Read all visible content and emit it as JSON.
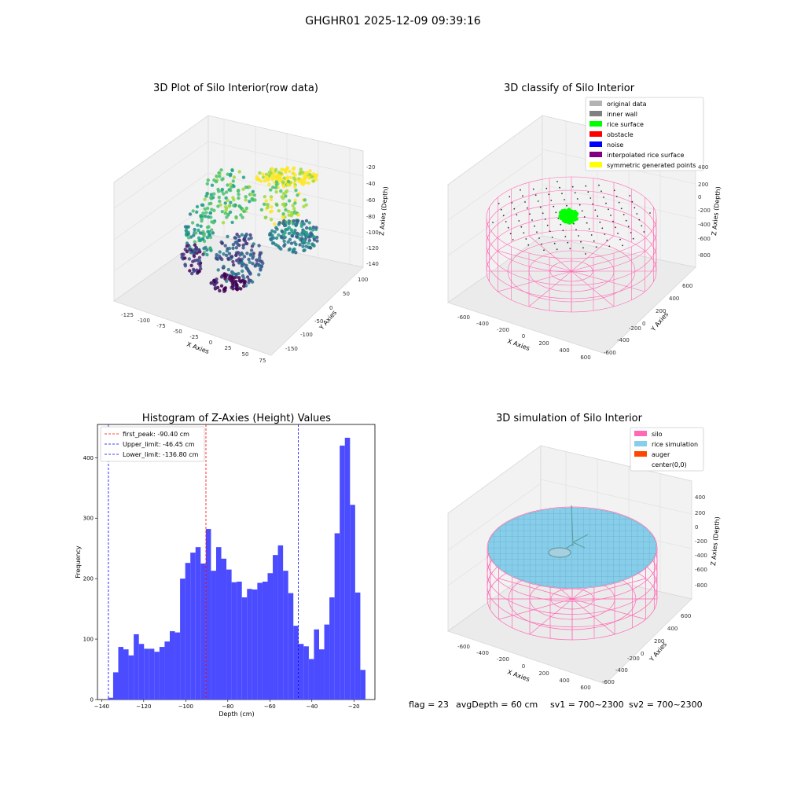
{
  "suptitle": "GHGHR01 2025-12-09 09:39:16",
  "panel1": {
    "title": "3D Plot of Silo Interior(row data)",
    "xlabel": "X Axies",
    "ylabel": "Y Axies",
    "zlabel": "Z Axies (Depth)",
    "xticks": [
      "-125",
      "-100",
      "-75",
      "-50",
      "-25",
      "0",
      "25",
      "50",
      "75"
    ],
    "yticks": [
      "100",
      "50",
      "0",
      "-50",
      "-100",
      "-150"
    ],
    "zticks": [
      "-20",
      "-40",
      "-60",
      "-80",
      "-100",
      "-120",
      "-140"
    ]
  },
  "panel2": {
    "title": "3D classify of Silo Interior",
    "legend": [
      {
        "label": "original data",
        "color": "#b3b3b3"
      },
      {
        "label": "inner wall",
        "color": "#808080"
      },
      {
        "label": "rice surface",
        "color": "#00ff00"
      },
      {
        "label": "obstacle",
        "color": "#ff0000"
      },
      {
        "label": "noise",
        "color": "#0000ff"
      },
      {
        "label": "interpolated rice surface",
        "color": "#800080"
      },
      {
        "label": "symmetric generated points",
        "color": "#ffff00"
      }
    ],
    "xlabel": "X Axies",
    "ylabel": "Y Axies",
    "zlabel": "Z Axies (Depth)",
    "xticks": [
      "-600",
      "-400",
      "-200",
      "0",
      "200",
      "400",
      "600"
    ],
    "yticks": [
      "600",
      "400",
      "200",
      "0",
      "-200",
      "-400",
      "-600"
    ],
    "zticks": [
      "400",
      "200",
      "0",
      "-200",
      "-400",
      "-600",
      "-800"
    ]
  },
  "panel3": {
    "title": "3D simulation of Silo Interior",
    "legend": [
      {
        "label": "silo",
        "color": "#ff69b4"
      },
      {
        "label": "rice simulation",
        "color": "#87ceeb"
      },
      {
        "label": "auger",
        "color": "#ff4500"
      },
      {
        "label": "center(0,0)",
        "color": "#ffffff"
      }
    ],
    "xlabel": "X Axies",
    "ylabel": "Y Axies",
    "zlabel": "Z Axies (Depth)",
    "xticks": [
      "-600",
      "-400",
      "-200",
      "0",
      "200",
      "400",
      "600"
    ],
    "yticks": [
      "600",
      "400",
      "200",
      "0",
      "-200",
      "-400",
      "-600"
    ],
    "zticks": [
      "400",
      "200",
      "0",
      "-200",
      "-400",
      "-600",
      "-800"
    ]
  },
  "footer": {
    "flag": "flag = 23",
    "avg": "avgDepth = 60 cm",
    "sv1": "sv1 = 700~2300",
    "sv2": "sv2 = 700~2300"
  },
  "colors": {
    "hist_bar": "#4b4bff",
    "silo": "#ff69b4",
    "rice": "#87ceeb"
  },
  "chart_data": {
    "type": "bar",
    "title": "Histogram of Z-Axies (Height) Values",
    "xlabel": "Depth (cm)",
    "ylabel": "Frequency",
    "xlim": [
      -142,
      -10
    ],
    "ylim": [
      0,
      455
    ],
    "xticks": [
      -140,
      -120,
      -100,
      -80,
      -60,
      -40,
      -20
    ],
    "yticks": [
      0,
      100,
      200,
      300,
      400
    ],
    "bin_start": -137,
    "bin_width": 2.45,
    "values": [
      3,
      45,
      87,
      83,
      73,
      108,
      92,
      84,
      84,
      79,
      87,
      96,
      113,
      111,
      200,
      226,
      243,
      252,
      225,
      282,
      213,
      252,
      233,
      215,
      194,
      195,
      169,
      183,
      182,
      193,
      195,
      209,
      239,
      255,
      213,
      176,
      122,
      92,
      88,
      67,
      116,
      83,
      124,
      169,
      275,
      420,
      433,
      322,
      177,
      49
    ],
    "vlines": [
      {
        "label": "first_peak: -90.40 cm",
        "x": -90.4,
        "color": "#ff0000"
      },
      {
        "label": "Upper_limit: -46.45 cm",
        "x": -46.45,
        "color": "#0000ff"
      },
      {
        "label": "Lower_limit: -136.80 cm",
        "x": -136.8,
        "color": "#0000ff"
      }
    ]
  }
}
